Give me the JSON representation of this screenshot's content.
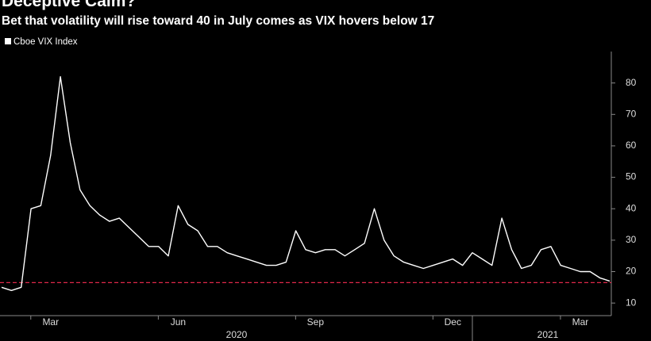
{
  "chart_data": {
    "type": "line",
    "title": "Deceptive Calm?",
    "subtitle": "Bet that volatility will rise toward 40 in July comes as VIX hovers below 17",
    "series_name": "Cboe VIX Index",
    "color": "#ffffff",
    "categories": [
      null,
      null,
      null,
      null,
      null,
      "Mar",
      null,
      null,
      null,
      null,
      null,
      null,
      null,
      null,
      null,
      null,
      null,
      null,
      "Jun",
      null,
      null,
      null,
      null,
      null,
      null,
      null,
      null,
      null,
      null,
      null,
      null,
      null,
      "Sep",
      null,
      null,
      null,
      null,
      null,
      null,
      null,
      null,
      null,
      null,
      null,
      null,
      null,
      "Dec",
      null,
      null,
      null,
      null,
      null,
      null,
      null,
      null,
      null,
      null,
      null,
      null,
      "Mar",
      null,
      null,
      null
    ],
    "values": [
      15,
      14,
      15,
      40,
      41,
      57,
      82,
      61,
      46,
      41,
      38,
      36,
      37,
      34,
      31,
      28,
      28,
      25,
      41,
      35,
      33,
      28,
      28,
      26,
      25,
      24,
      23,
      22,
      22,
      23,
      33,
      27,
      26,
      27,
      27,
      25,
      27,
      29,
      40,
      30,
      25,
      23,
      22,
      21,
      22,
      23,
      24,
      22,
      26,
      24,
      22,
      37,
      27,
      21,
      22,
      27,
      28,
      22,
      21,
      20,
      20,
      18,
      17
    ],
    "year_labels": [
      "2020",
      "2021"
    ],
    "ylim": [
      6,
      90
    ],
    "yticks": [
      10,
      20,
      30,
      40,
      50,
      60,
      70,
      80
    ],
    "reference_line": {
      "value": 16.5,
      "color": "#e0284a"
    }
  }
}
